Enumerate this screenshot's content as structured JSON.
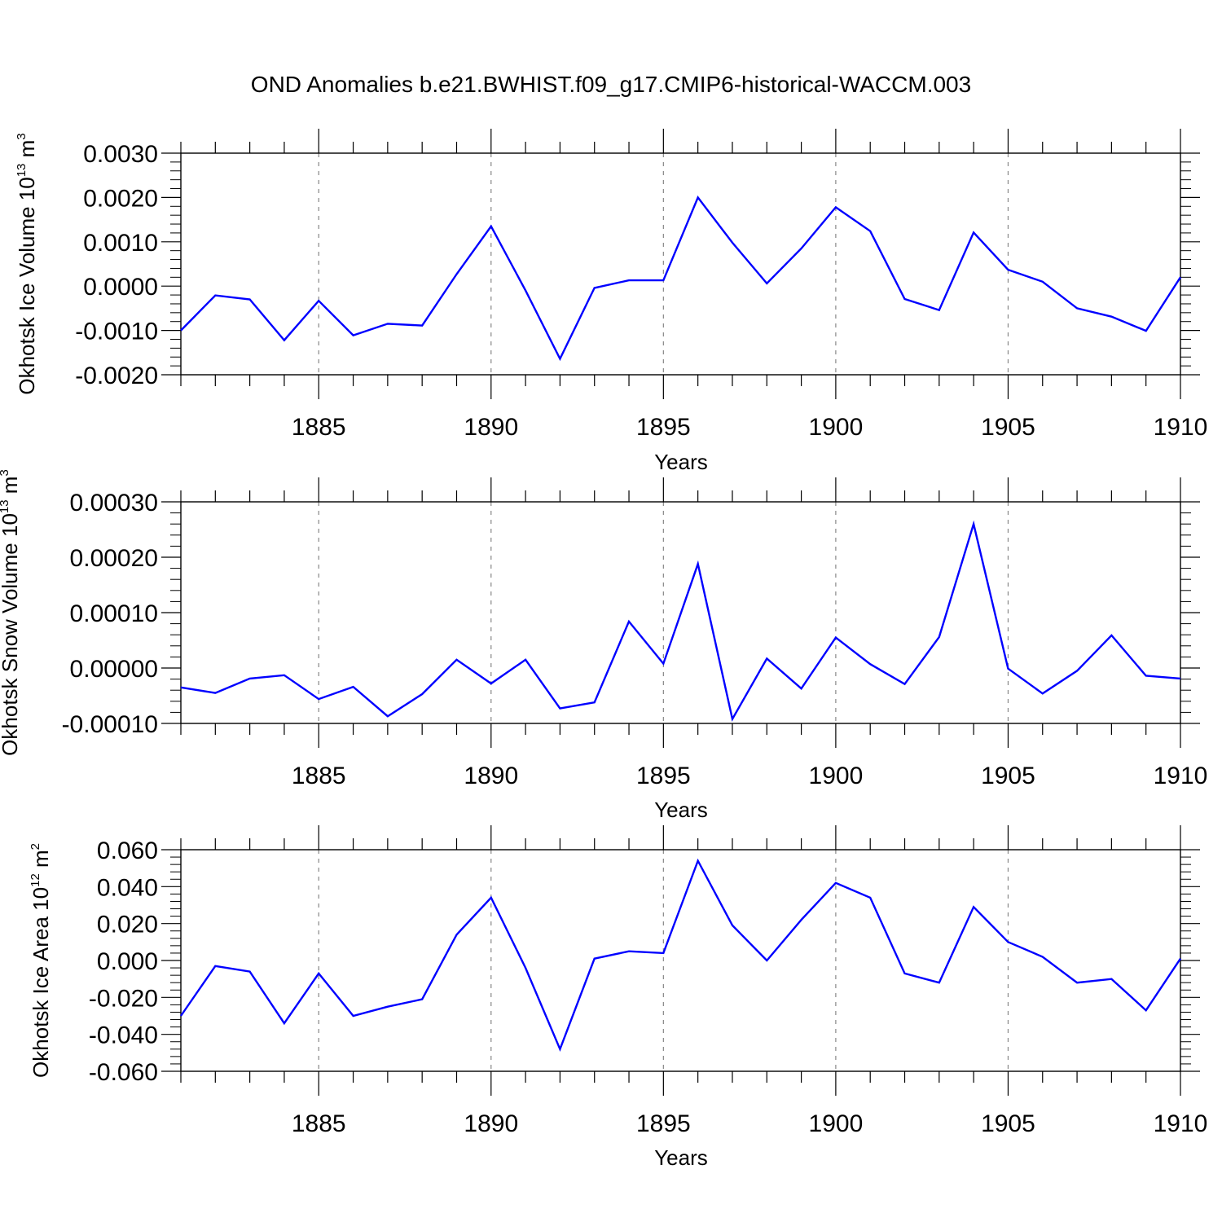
{
  "title": "OND Anomalies b.e21.BWHIST.f09_g17.CMIP6-historical-WACCM.003",
  "line_color": "#0000ff",
  "chart_data": [
    {
      "type": "line",
      "ylabel_parts": [
        "Okhotsk Ice Volume 10",
        "13",
        " m",
        "3"
      ],
      "xlabel": "Years",
      "xlim": [
        1881,
        1910
      ],
      "ylim": [
        -0.002,
        0.003
      ],
      "x_ticks": [
        1885,
        1890,
        1895,
        1900,
        1905,
        1910
      ],
      "y_ticks": [
        "-0.0020",
        "-0.0010",
        "0.0000",
        "0.0010",
        "0.0020",
        "0.0030"
      ],
      "y_tick_values": [
        -0.002,
        -0.001,
        0.0,
        0.001,
        0.002,
        0.003
      ],
      "grid": "dashed vertical lines at 1885, 1890, 1895, 1900, 1905",
      "x": [
        1881,
        1882,
        1883,
        1884,
        1885,
        1886,
        1887,
        1888,
        1889,
        1890,
        1891,
        1892,
        1893,
        1894,
        1895,
        1896,
        1897,
        1898,
        1899,
        1900,
        1901,
        1902,
        1903,
        1904,
        1905,
        1906,
        1907,
        1908,
        1909,
        1910
      ],
      "series": [
        {
          "values": [
            -0.001,
            -0.00021,
            -0.0003,
            -0.00122,
            -0.00033,
            -0.00111,
            -0.00085,
            -0.00089,
            0.00027,
            0.00135,
            -0.0001,
            -0.00164,
            -4e-05,
            0.00013,
            0.00013,
            0.002,
            0.00098,
            6e-05,
            0.00085,
            0.00178,
            0.00124,
            -0.00029,
            -0.00054,
            0.00121,
            0.00037,
            0.0001,
            -0.0005,
            -0.00069,
            -0.00101,
            0.0002
          ]
        }
      ]
    },
    {
      "type": "line",
      "ylabel_parts": [
        "Okhotsk Snow Volume 10",
        "13",
        " m",
        "3"
      ],
      "xlabel": "Years",
      "xlim": [
        1881,
        1910
      ],
      "ylim": [
        -0.0001,
        0.0003
      ],
      "x_ticks": [
        1885,
        1890,
        1895,
        1900,
        1905,
        1910
      ],
      "y_ticks": [
        "-0.00010",
        "0.00000",
        "0.00010",
        "0.00020",
        "0.00030"
      ],
      "y_tick_values": [
        -0.0001,
        0.0,
        0.0001,
        0.0002,
        0.0003
      ],
      "grid": "dashed vertical lines at 1885, 1890, 1895, 1900, 1905",
      "x": [
        1881,
        1882,
        1883,
        1884,
        1885,
        1886,
        1887,
        1888,
        1889,
        1890,
        1891,
        1892,
        1893,
        1894,
        1895,
        1896,
        1897,
        1898,
        1899,
        1900,
        1901,
        1902,
        1903,
        1904,
        1905,
        1906,
        1907,
        1908,
        1909,
        1910
      ],
      "series": [
        {
          "values": [
            -3.5e-05,
            -4.5e-05,
            -1.9e-05,
            -1.3e-05,
            -5.6e-05,
            -3.4e-05,
            -8.7e-05,
            -4.7e-05,
            1.5e-05,
            -2.8e-05,
            1.5e-05,
            -7.3e-05,
            -6.2e-05,
            8.4e-05,
            8e-06,
            0.000188,
            -9.2e-05,
            1.7e-05,
            -3.7e-05,
            5.5e-05,
            7e-06,
            -2.9e-05,
            5.6e-05,
            0.00026,
            -1e-06,
            -4.6e-05,
            -5e-06,
            5.9e-05,
            -1.4e-05,
            -1.9e-05
          ]
        }
      ]
    },
    {
      "type": "line",
      "ylabel_parts": [
        "Okhotsk Ice Area 10",
        "12",
        " m",
        "2"
      ],
      "xlabel": "Years",
      "xlim": [
        1881,
        1910
      ],
      "ylim": [
        -0.06,
        0.06
      ],
      "x_ticks": [
        1885,
        1890,
        1895,
        1900,
        1905,
        1910
      ],
      "y_ticks": [
        "-0.060",
        "-0.040",
        "-0.020",
        "0.000",
        "0.020",
        "0.040",
        "0.060"
      ],
      "y_tick_values": [
        -0.06,
        -0.04,
        -0.02,
        0.0,
        0.02,
        0.04,
        0.06
      ],
      "grid": "dashed vertical lines at 1885, 1890, 1895, 1900, 1905",
      "x": [
        1881,
        1882,
        1883,
        1884,
        1885,
        1886,
        1887,
        1888,
        1889,
        1890,
        1891,
        1892,
        1893,
        1894,
        1895,
        1896,
        1897,
        1898,
        1899,
        1900,
        1901,
        1902,
        1903,
        1904,
        1905,
        1906,
        1907,
        1908,
        1909,
        1910
      ],
      "series": [
        {
          "values": [
            -0.03,
            -0.003,
            -0.006,
            -0.034,
            -0.007,
            -0.03,
            -0.025,
            -0.021,
            0.014,
            0.034,
            -0.004,
            -0.048,
            0.001,
            0.005,
            0.004,
            0.054,
            0.019,
            0.0,
            0.022,
            0.042,
            0.034,
            -0.007,
            -0.012,
            0.029,
            0.01,
            0.002,
            -0.012,
            -0.01,
            -0.027,
            0.001
          ]
        }
      ]
    }
  ]
}
